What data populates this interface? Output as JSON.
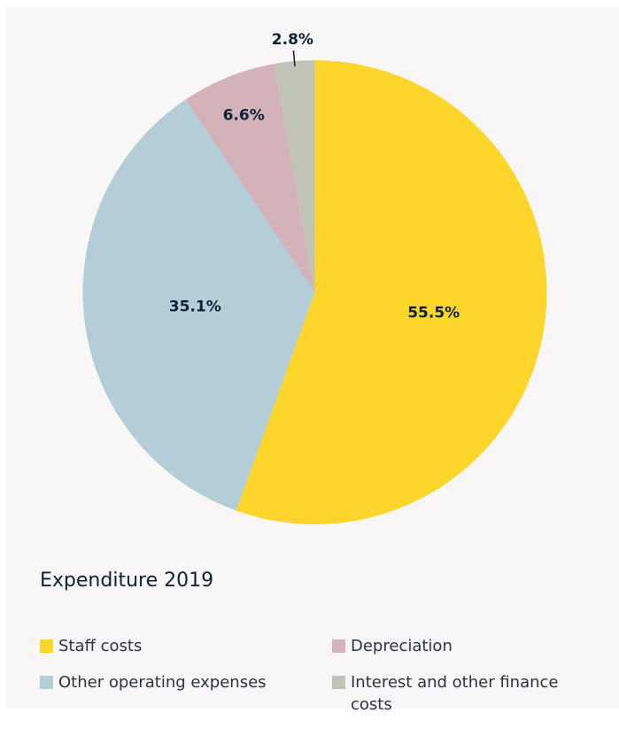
{
  "chart_data": {
    "type": "pie",
    "title": "Expenditure 2019",
    "categories": [
      "Staff costs",
      "Other operating expenses",
      "Depreciation",
      "Interest and other finance costs"
    ],
    "values": [
      55.5,
      35.1,
      6.6,
      2.8
    ],
    "value_labels": [
      "55.5%",
      "35.1%",
      "6.6%",
      "2.8%"
    ],
    "colors": [
      "#fdd52b",
      "#b3ced6",
      "#d4b2ba",
      "#c0c4b6"
    ]
  }
}
